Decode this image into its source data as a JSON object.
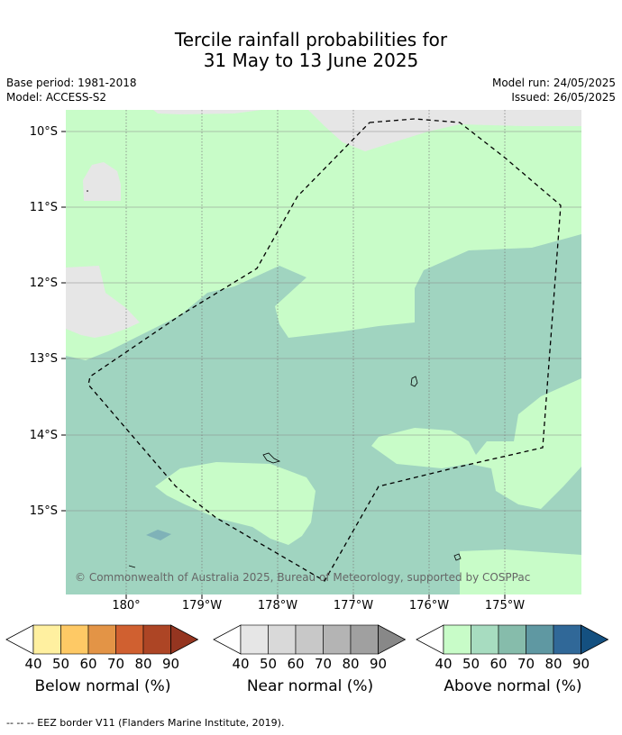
{
  "title_line1": "Tercile rainfall probabilities for",
  "title_line2": "31 May to 13 June 2025",
  "base_period": "Base period: 1981-2018",
  "model": "Model: ACCESS-S2",
  "model_run": "Model run: 24/05/2025",
  "issued": "Issued: 26/05/2025",
  "lat_labels": [
    "10°S",
    "11°S",
    "12°S",
    "13°S",
    "14°S",
    "15°S"
  ],
  "lon_labels": [
    "180°",
    "179°W",
    "178°W",
    "177°W",
    "176°W",
    "175°W"
  ],
  "copyright": "© Commonwealth of Australia 2025, Bureau of Meteorology, supported by COSPPac",
  "colorbars": [
    {
      "title": "Below normal (%)",
      "ticks": [
        "40",
        "50",
        "60",
        "70",
        "80",
        "90"
      ],
      "colors": [
        "#fff0a0",
        "#fec965",
        "#e39446",
        "#d06030",
        "#ad4525",
        "#953520"
      ]
    },
    {
      "title": "Near normal (%)",
      "ticks": [
        "40",
        "50",
        "60",
        "70",
        "80",
        "90"
      ],
      "colors": [
        "#e6e6e6",
        "#d9d9d9",
        "#c8c8c8",
        "#b4b4b4",
        "#a0a0a0",
        "#888888"
      ]
    },
    {
      "title": "Above normal (%)",
      "ticks": [
        "40",
        "50",
        "60",
        "70",
        "80",
        "90"
      ],
      "colors": [
        "#c8fcc8",
        "#a7dcc0",
        "#86bcab",
        "#5f98a2",
        "#306898",
        "#145080"
      ]
    }
  ],
  "colors": {
    "above_40": "#c8fcc8",
    "above_50": "#a0d4c0",
    "above_60": "#7fb2b8",
    "near_40": "#e6e6e6"
  },
  "footnote": "--  --  -- EEZ border V11 (Flanders Marine Institute, 2019)."
}
